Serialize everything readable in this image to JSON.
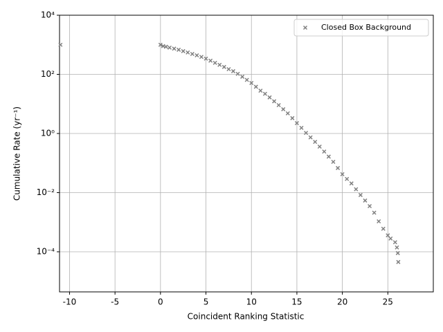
{
  "chart_data": {
    "type": "scatter",
    "xlabel": "Coincident Ranking Statistic",
    "ylabel": "Cumulative Rate (yr⁻¹)",
    "log_y": true,
    "grid": true,
    "legend": "upper right",
    "xlim": [
      -11.1,
      30
    ],
    "ylim": [
      4.4e-06,
      10000
    ],
    "xticks": [
      -10,
      -5,
      0,
      5,
      10,
      15,
      20,
      25
    ],
    "yticks": [
      {
        "value": 0.0001,
        "label": "10⁻⁴"
      },
      {
        "value": 0.01,
        "label": "10⁻²"
      },
      {
        "value": 1,
        "label": "10⁰"
      },
      {
        "value": 100,
        "label": "10²"
      },
      {
        "value": 10000,
        "label": "10⁴"
      }
    ],
    "series": [
      {
        "name": "Closed Box Background",
        "color": "#808080",
        "marker": "x",
        "x": [
          -11,
          0,
          0.3,
          0.6,
          1,
          1.5,
          2,
          2.5,
          3,
          3.5,
          4,
          4.5,
          5,
          5.5,
          6,
          6.5,
          7,
          7.5,
          8,
          8.5,
          9,
          9.5,
          10,
          10.5,
          11,
          11.5,
          12,
          12.5,
          13,
          13.5,
          14,
          14.5,
          15,
          15.5,
          16,
          16.5,
          17,
          17.5,
          18,
          18.5,
          19,
          19.5,
          20,
          20.5,
          21,
          21.5,
          22,
          22.5,
          23,
          23.5,
          24,
          24.5,
          25,
          25.3,
          25.8,
          26,
          26.1,
          26.15
        ],
        "values": [
          1000,
          1000,
          900,
          860,
          800,
          740,
          680,
          610,
          550,
          490,
          440,
          390,
          340,
          290,
          245,
          210,
          178,
          150,
          128,
          104,
          83,
          65,
          51,
          38,
          28,
          22,
          16.6,
          12.3,
          9.1,
          6.6,
          4.8,
          3.3,
          2.24,
          1.55,
          1.05,
          0.74,
          0.52,
          0.36,
          0.245,
          0.165,
          0.11,
          0.068,
          0.042,
          0.029,
          0.0205,
          0.013,
          0.0083,
          0.0054,
          0.0035,
          0.0021,
          0.00107,
          0.0006,
          0.00036,
          0.00028,
          0.00021,
          0.00014,
          9e-05,
          4.5e-05
        ]
      }
    ]
  }
}
